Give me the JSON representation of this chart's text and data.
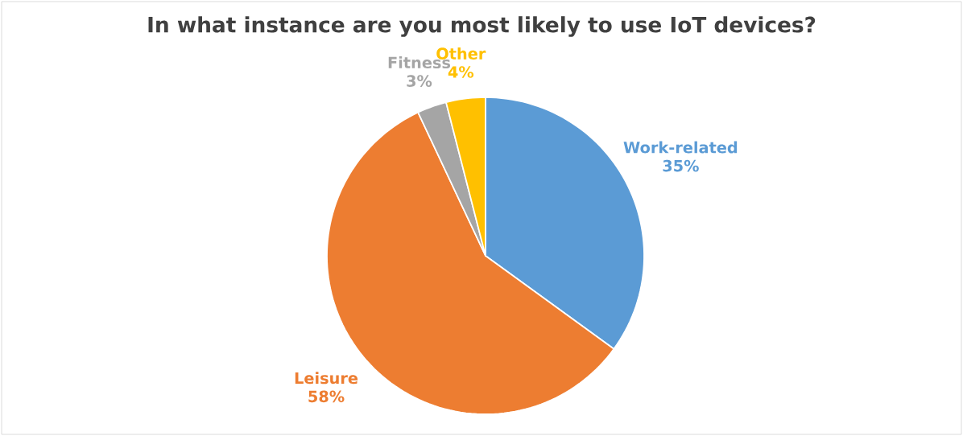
{
  "chart_data": {
    "type": "pie",
    "title": "In what instance are you most likely to use IoT devices?",
    "categories": [
      "Work-related",
      "Leisure",
      "Fitness",
      "Other"
    ],
    "values": [
      35,
      58,
      3,
      4
    ],
    "value_labels": [
      "35%",
      "58%",
      "3%",
      "4%"
    ],
    "colors": [
      "#5b9bd5",
      "#ed7d31",
      "#a5a5a5",
      "#ffc000"
    ],
    "legend": false
  }
}
